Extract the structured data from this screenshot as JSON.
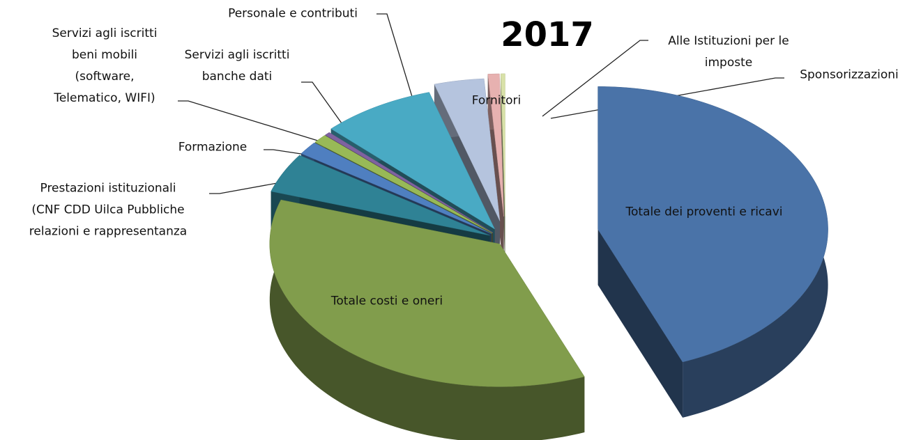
{
  "chart_data": {
    "type": "pie",
    "title": "2017",
    "categories": [
      "Totale dei proventi e ricavi",
      "Totale costi e oneri",
      "Prestazioni istituzionali\n(CNF CDD Uilca Pubbliche\nrelazioni e rappresentanza",
      "Formazione",
      "Servizi agli iscritti\nbeni mobili\n(software,\nTelematico, WIFI)",
      "Servizi agli iscritti\nbanche dati",
      "Personale e contributi",
      "Fornitori",
      "Alle Istituzioni per le\nimposte",
      "Sponsorizzazioni"
    ],
    "values": [
      44,
      36,
      4.5,
      1.5,
      1,
      0.4,
      8,
      3.5,
      0.8,
      0.3
    ],
    "colors": [
      "#4a73a8",
      "#819d4c",
      "#2f8295",
      "#4f7fc0",
      "#98b957",
      "#7f62a0",
      "#49aac4",
      "#b5c4de",
      "#e7b1b0",
      "#d8e1a8"
    ]
  }
}
